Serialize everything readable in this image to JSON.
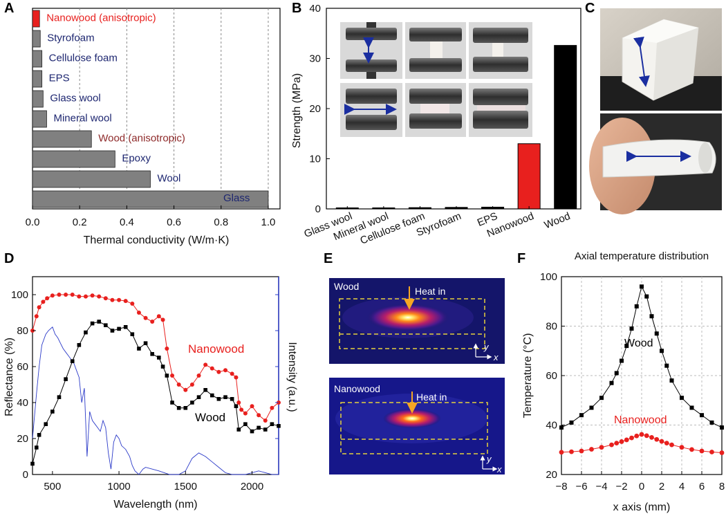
{
  "panels": {
    "A": "A",
    "B": "B",
    "C": "C",
    "D": "D",
    "E": "E",
    "F": "F"
  },
  "chart_data": [
    {
      "panel": "A",
      "type": "bar",
      "orientation": "horizontal",
      "categories": [
        "Nanowood (anisotropic)",
        "Styrofoam",
        "Cellulose foam",
        "EPS",
        "Glass wool",
        "Mineral wool",
        "Wood (anisotropic)",
        "Epoxy",
        "Wool",
        "Glass"
      ],
      "values": [
        0.03,
        0.033,
        0.04,
        0.04,
        0.045,
        0.06,
        0.25,
        0.35,
        0.5,
        1.0
      ],
      "label_colors": [
        "#e8201e",
        "#1d2670",
        "#1d2670",
        "#1d2670",
        "#1d2670",
        "#1d2670",
        "#8e2a2a",
        "#1d2670",
        "#1d2670",
        "#1d2670"
      ],
      "bar_colors": [
        "#e8201e",
        "#808080",
        "#808080",
        "#808080",
        "#808080",
        "#808080",
        "#808080",
        "#808080",
        "#808080",
        "#808080"
      ],
      "xlabel": "Thermal conductivity (W/m·K)",
      "xlim": [
        0,
        1.05
      ],
      "xticks": [
        "0.0",
        "0.2",
        "0.4",
        "0.6",
        "0.8",
        "1.0"
      ],
      "grid": "vertical dashed"
    },
    {
      "panel": "B",
      "type": "bar",
      "categories": [
        "Glass wool",
        "Mineral wool",
        "Cellulose foam",
        "Styrofoam",
        "EPS",
        "Nanowood",
        "Wood"
      ],
      "values": [
        0.02,
        0.03,
        0.25,
        0.3,
        0.35,
        13,
        32.6
      ],
      "bar_colors": [
        "#000000",
        "#000000",
        "#000000",
        "#000000",
        "#000000",
        "#e8201e",
        "#000000"
      ],
      "ylabel": "Strength (MPa)",
      "ylim": [
        0,
        40
      ],
      "yticks": [
        "0",
        "10",
        "20",
        "30",
        "40"
      ]
    },
    {
      "panel": "D",
      "type": "line",
      "xlabel": "Wavelength (nm)",
      "ylabel": "Reflectance (%)",
      "ylabel_right": "Intensity (a.u.)",
      "xlim": [
        350,
        2200
      ],
      "ylim": [
        0,
        110
      ],
      "xticks": [
        "500",
        "1000",
        "1500",
        "2000"
      ],
      "yticks": [
        "0",
        "20",
        "40",
        "60",
        "80",
        "100"
      ],
      "series": [
        {
          "name": "Nanowood",
          "color": "#e8201e",
          "x": [
            350,
            380,
            400,
            430,
            460,
            500,
            550,
            600,
            650,
            700,
            750,
            800,
            850,
            900,
            950,
            1000,
            1050,
            1100,
            1150,
            1200,
            1250,
            1300,
            1330,
            1360,
            1400,
            1450,
            1500,
            1550,
            1600,
            1650,
            1700,
            1750,
            1800,
            1850,
            1880,
            1900,
            1920,
            1950,
            2000,
            2050,
            2100,
            2150,
            2200
          ],
          "y": [
            80,
            88,
            93,
            96,
            98,
            99.5,
            100,
            100,
            100,
            99,
            99,
            99.5,
            99,
            98,
            97,
            97,
            96.5,
            95,
            90,
            87,
            85,
            88,
            86,
            70,
            55,
            50,
            47,
            50,
            55,
            61,
            59,
            57,
            58,
            56,
            54,
            40,
            36,
            34,
            38,
            33,
            30,
            37,
            40
          ]
        },
        {
          "name": "Wood",
          "color": "#000000",
          "x": [
            350,
            380,
            400,
            450,
            500,
            550,
            600,
            650,
            700,
            750,
            800,
            850,
            900,
            950,
            1000,
            1050,
            1100,
            1150,
            1200,
            1250,
            1300,
            1330,
            1360,
            1400,
            1450,
            1500,
            1550,
            1600,
            1650,
            1700,
            1750,
            1800,
            1850,
            1880,
            1900,
            1950,
            2000,
            2050,
            2100,
            2150,
            2200
          ],
          "y": [
            6,
            15,
            22,
            28,
            35,
            43,
            53,
            63,
            72,
            79,
            84,
            85,
            83,
            80,
            81,
            82,
            78,
            70,
            73,
            67,
            65,
            60,
            55,
            40,
            37,
            37,
            40,
            43,
            47,
            44,
            42,
            43,
            42,
            38,
            25,
            28,
            24,
            26,
            25,
            28,
            27
          ]
        },
        {
          "name": "",
          "color": "#2a39c8",
          "axis": "right",
          "x": [
            350,
            380,
            400,
            420,
            450,
            470,
            500,
            520,
            540,
            560,
            580,
            600,
            620,
            640,
            660,
            680,
            700,
            720,
            740,
            760,
            780,
            800,
            820,
            840,
            860,
            880,
            900,
            920,
            940,
            960,
            980,
            1000,
            1020,
            1050,
            1080,
            1100,
            1120,
            1150,
            1180,
            1200,
            1250,
            1300,
            1340,
            1380,
            1400,
            1450,
            1500,
            1550,
            1600,
            1650,
            1700,
            1750,
            1800,
            1850,
            1900,
            1950,
            2000,
            2050,
            2100,
            2150,
            2200
          ],
          "y": [
            20,
            45,
            60,
            72,
            78,
            80,
            82,
            78,
            76,
            73,
            70,
            68,
            66,
            64,
            62,
            58,
            54,
            40,
            48,
            10,
            35,
            30,
            28,
            26,
            24,
            30,
            26,
            12,
            3,
            18,
            22,
            20,
            16,
            14,
            10,
            5,
            2,
            0,
            3,
            4,
            3,
            2,
            1,
            0,
            0,
            0,
            2,
            9,
            12,
            10,
            7,
            4,
            1,
            0,
            0,
            0,
            1,
            2,
            1,
            0,
            0
          ]
        }
      ],
      "annotations": [
        "Nanowood",
        "Wood"
      ]
    },
    {
      "panel": "F",
      "type": "line",
      "title": "Axial temperature distribution",
      "xlabel": "x axis (mm)",
      "ylabel": "Temperature (°C)",
      "xlim": [
        -8,
        8
      ],
      "ylim": [
        20,
        100
      ],
      "xticks": [
        "−8",
        "−6",
        "−4",
        "−2",
        "0",
        "2",
        "4",
        "6",
        "8"
      ],
      "yticks": [
        "20",
        "40",
        "60",
        "80",
        "100"
      ],
      "series": [
        {
          "name": "Wood",
          "color": "#000000",
          "x": [
            -8,
            -7,
            -6,
            -5,
            -4,
            -3,
            -2.5,
            -2,
            -1.5,
            -1,
            -0.5,
            0,
            0.5,
            1,
            1.5,
            2,
            2.5,
            3,
            4,
            5,
            6,
            7,
            8
          ],
          "y": [
            39,
            41,
            44,
            47,
            51,
            57,
            61,
            66,
            72,
            79,
            88,
            96,
            92,
            84,
            77,
            70,
            64,
            58,
            51,
            47,
            44,
            41,
            39
          ]
        },
        {
          "name": "Nanowood",
          "color": "#e8201e",
          "x": [
            -8,
            -7,
            -6,
            -5,
            -4,
            -3,
            -2.5,
            -2,
            -1.5,
            -1,
            -0.5,
            0,
            0.5,
            1,
            1.5,
            2,
            2.5,
            3,
            4,
            5,
            6,
            7,
            8
          ],
          "y": [
            29,
            29.2,
            29.5,
            30.2,
            31,
            32,
            32.7,
            33.3,
            34,
            34.8,
            35.6,
            36.2,
            35.7,
            35,
            34.2,
            33.4,
            32.7,
            32,
            31,
            30.1,
            29.5,
            29.1,
            28.8
          ]
        }
      ],
      "annotations": [
        "Wood",
        "Nanowood"
      ]
    }
  ],
  "panel_e": {
    "top": {
      "label": "Wood",
      "heat": "Heat in",
      "y_axis": "y",
      "x_axis": "x"
    },
    "bottom": {
      "label": "Nanowood",
      "heat": "Heat in",
      "y_axis": "y",
      "x_axis": "x"
    }
  }
}
